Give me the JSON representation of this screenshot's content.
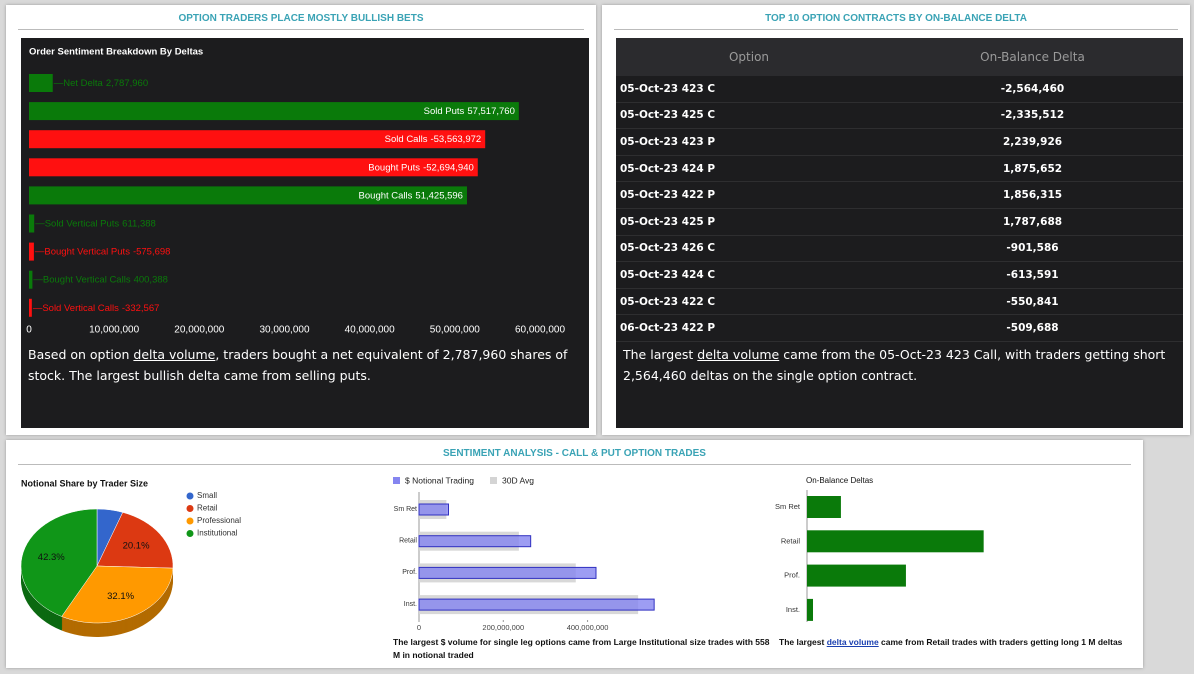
{
  "panels": {
    "left": {
      "title": "OPTION TRADERS PLACE MOSTLY BULLISH BETS",
      "summary": [
        "Based on option ",
        "delta volume",
        ", traders bought a net equivalent of 2,787,960 shares of stock. The largest bullish delta came from selling puts."
      ]
    },
    "right": {
      "title": "TOP 10 OPTION CONTRACTS BY ON-BALANCE DELTA",
      "summary": [
        "The largest ",
        "delta volume",
        " came from the 05-Oct-23 423 Call, with traders getting short 2,564,460 deltas on the single option contract."
      ]
    },
    "bottom": {
      "title": "SENTIMENT ANALYSIS - CALL & PUT OPTION TRADES"
    }
  },
  "table": {
    "columns": [
      "Option",
      "On-Balance Delta"
    ],
    "rows": [
      [
        "05-Oct-23 423 C",
        "-2,564,460"
      ],
      [
        "05-Oct-23 425 C",
        "-2,335,512"
      ],
      [
        "05-Oct-23 423 P",
        "2,239,926"
      ],
      [
        "05-Oct-23 424 P",
        "1,875,652"
      ],
      [
        "05-Oct-23 422 P",
        "1,856,315"
      ],
      [
        "05-Oct-23 425 P",
        "1,787,688"
      ],
      [
        "05-Oct-23 426 C",
        "-901,586"
      ],
      [
        "05-Oct-23 424 C",
        "-613,591"
      ],
      [
        "05-Oct-23 422 C",
        "-550,841"
      ],
      [
        "06-Oct-23 422 P",
        "-509,688"
      ]
    ]
  },
  "chart_data": [
    {
      "type": "hbar",
      "title": "Order Sentiment Breakdown By Deltas",
      "categories": [
        "Net Delta",
        "Sold Puts",
        "Sold Calls",
        "Bought Puts",
        "Bought Calls",
        "Sold Vertical Puts",
        "Bought Vertical Puts",
        "Bought Vertical Calls",
        "Sold Vertical Calls"
      ],
      "values": [
        2787960,
        57517760,
        -53563972,
        -52694940,
        51425596,
        611388,
        -575698,
        400388,
        -332567
      ],
      "value_labels": [
        "2,787,960",
        "57,517,760",
        "-53,563,972",
        "-52,694,940",
        "51,425,596",
        "611,388",
        "-575,698",
        "400,388",
        "-332,567"
      ],
      "colors": [
        "#0a7a0a",
        "#0a7a0a",
        "#ff1010",
        "#ff1010",
        "#0a7a0a",
        "#0a7a0a",
        "#ff1010",
        "#0a7a0a",
        "#ff1010"
      ],
      "xlim": [
        0,
        60000000
      ],
      "xticks": [
        0,
        {
          "value": 10000000,
          "label": "10,000,000"
        },
        {
          "value": 20000000,
          "label": "20,000,000"
        },
        {
          "value": 30000000,
          "label": "30,000,000"
        },
        {
          "value": 40000000,
          "label": "40,000,000"
        },
        {
          "value": 50000000,
          "label": "50,000,000"
        },
        {
          "value": 60000000,
          "label": "60,000,000"
        }
      ]
    },
    {
      "type": "pie",
      "title": "Notional Share by Trader Size",
      "categories": [
        "Small",
        "Retail",
        "Professional",
        "Institutional"
      ],
      "values": [
        5.5,
        20.1,
        32.1,
        42.3
      ],
      "value_labels": [
        null,
        "20.1%",
        "32.1%",
        "42.3%"
      ],
      "colors": [
        "#3366cc",
        "#dc3912",
        "#ff9900",
        "#109618"
      ]
    },
    {
      "type": "overlay-hbar",
      "categories": [
        "Sm Ret",
        "Retail",
        "Prof.",
        "Inst."
      ],
      "series": [
        {
          "name": "$ Notional Trading",
          "color": "#8585f0",
          "values": [
            70000000,
            265000000,
            420000000,
            558000000
          ]
        },
        {
          "name": "30D Avg",
          "color": "#d4d4d4",
          "values": [
            65000000,
            237000000,
            372000000,
            520000000
          ]
        }
      ],
      "xlim": [
        0,
        560000000
      ],
      "xticks": [
        0,
        {
          "value": 200000000,
          "label": "200,000,000"
        },
        {
          "value": 400000000,
          "label": "400,000,000"
        }
      ],
      "note": "The largest $ volume for single leg options came from Large Institutional size trades with 558 M in notional traded"
    },
    {
      "type": "simple-hbar",
      "title": "On-Balance Deltas",
      "categories": [
        "Sm Ret",
        "Retail",
        "Prof.",
        "Inst."
      ],
      "values": [
        192000,
        1000000,
        560000,
        34000
      ],
      "color": "#0a7a0a",
      "xlim": [
        0,
        1200000
      ],
      "note": [
        "The largest ",
        "delta volume",
        " came from Retail trades with traders getting long 1 M deltas"
      ]
    }
  ]
}
